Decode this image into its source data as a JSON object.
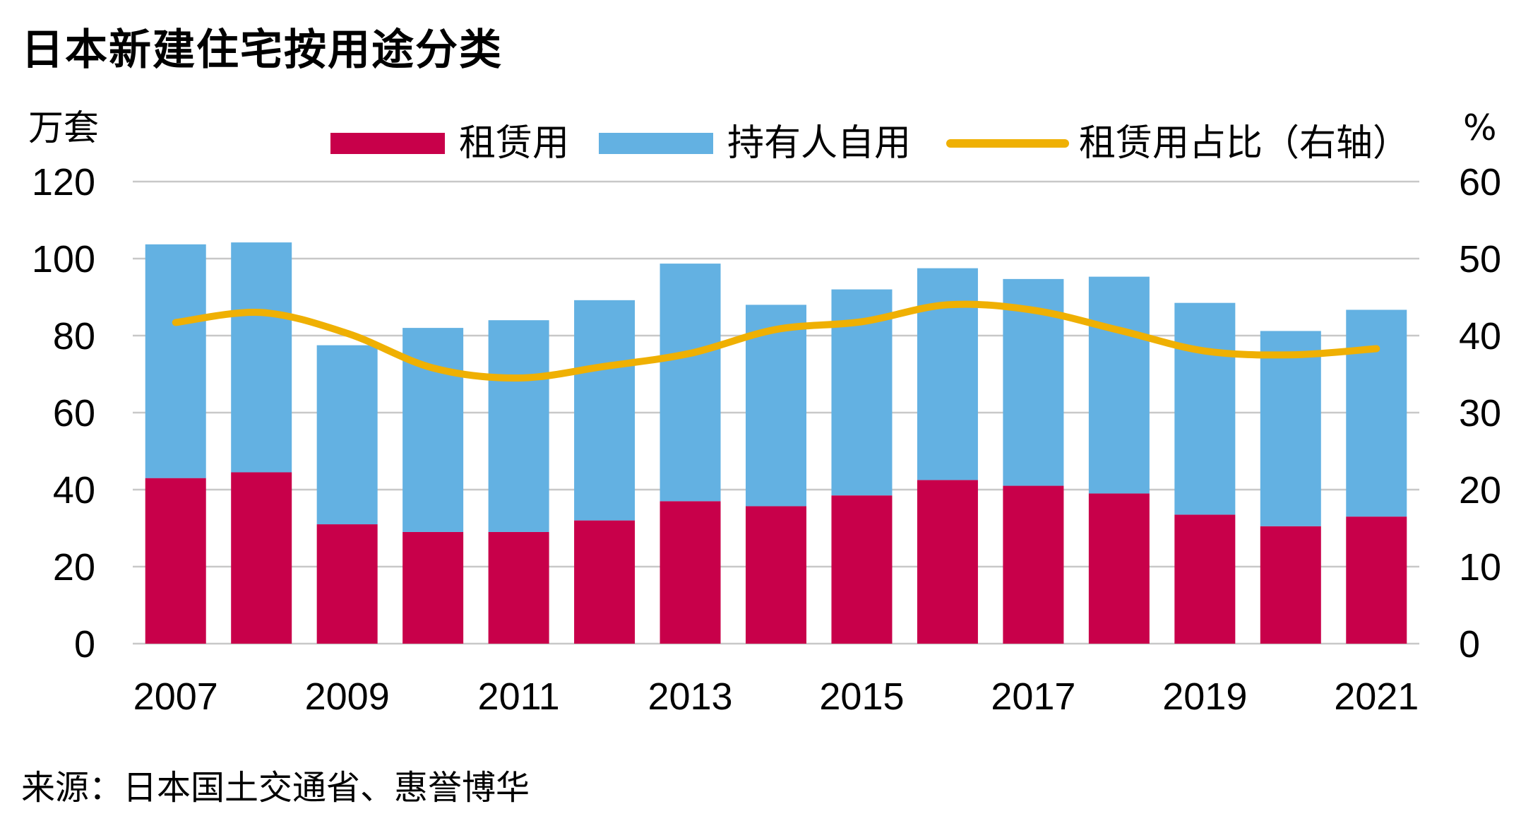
{
  "title": "日本新建住宅按用途分类",
  "source": "来源：日本国土交通省、惠誉博华",
  "chart_data": {
    "type": "bar",
    "stacked": true,
    "years": [
      2007,
      2008,
      2009,
      2010,
      2011,
      2012,
      2013,
      2014,
      2015,
      2016,
      2017,
      2018,
      2019,
      2020,
      2021
    ],
    "x_tick_labels": [
      "2007",
      "2009",
      "2011",
      "2013",
      "2015",
      "2017",
      "2019",
      "2021"
    ],
    "left_axis": {
      "unit_label": "万套",
      "ylim": [
        0,
        120
      ],
      "ticks": [
        "0",
        "20",
        "40",
        "60",
        "80",
        "100",
        "120"
      ]
    },
    "right_axis": {
      "unit_label": "%",
      "ylim": [
        0,
        60
      ],
      "ticks": [
        "0",
        "10",
        "20",
        "30",
        "40",
        "50",
        "60"
      ]
    },
    "grid": true,
    "legend_position": "top",
    "series": [
      {
        "name": "租赁用",
        "type": "bar",
        "axis": "left",
        "color": "#C8004A",
        "values": [
          43,
          44.5,
          31,
          29,
          29,
          32,
          37,
          35.7,
          38.5,
          42.5,
          41,
          39,
          33.5,
          30.5,
          33
        ]
      },
      {
        "name": "持有人自用",
        "type": "bar",
        "axis": "left",
        "color": "#63B1E2",
        "values": [
          60.7,
          59.7,
          46.5,
          53,
          55,
          57.2,
          61.7,
          52.3,
          53.5,
          55,
          53.7,
          56.3,
          55,
          50.7,
          53.7
        ]
      },
      {
        "name": "租赁用占比（右轴）",
        "type": "line",
        "axis": "right",
        "color": "#EFB003",
        "values": [
          41.7,
          43,
          40.3,
          35.8,
          34.5,
          36,
          37.7,
          40.8,
          41.8,
          44,
          43.3,
          40.7,
          38,
          37.5,
          38.3
        ]
      }
    ]
  }
}
